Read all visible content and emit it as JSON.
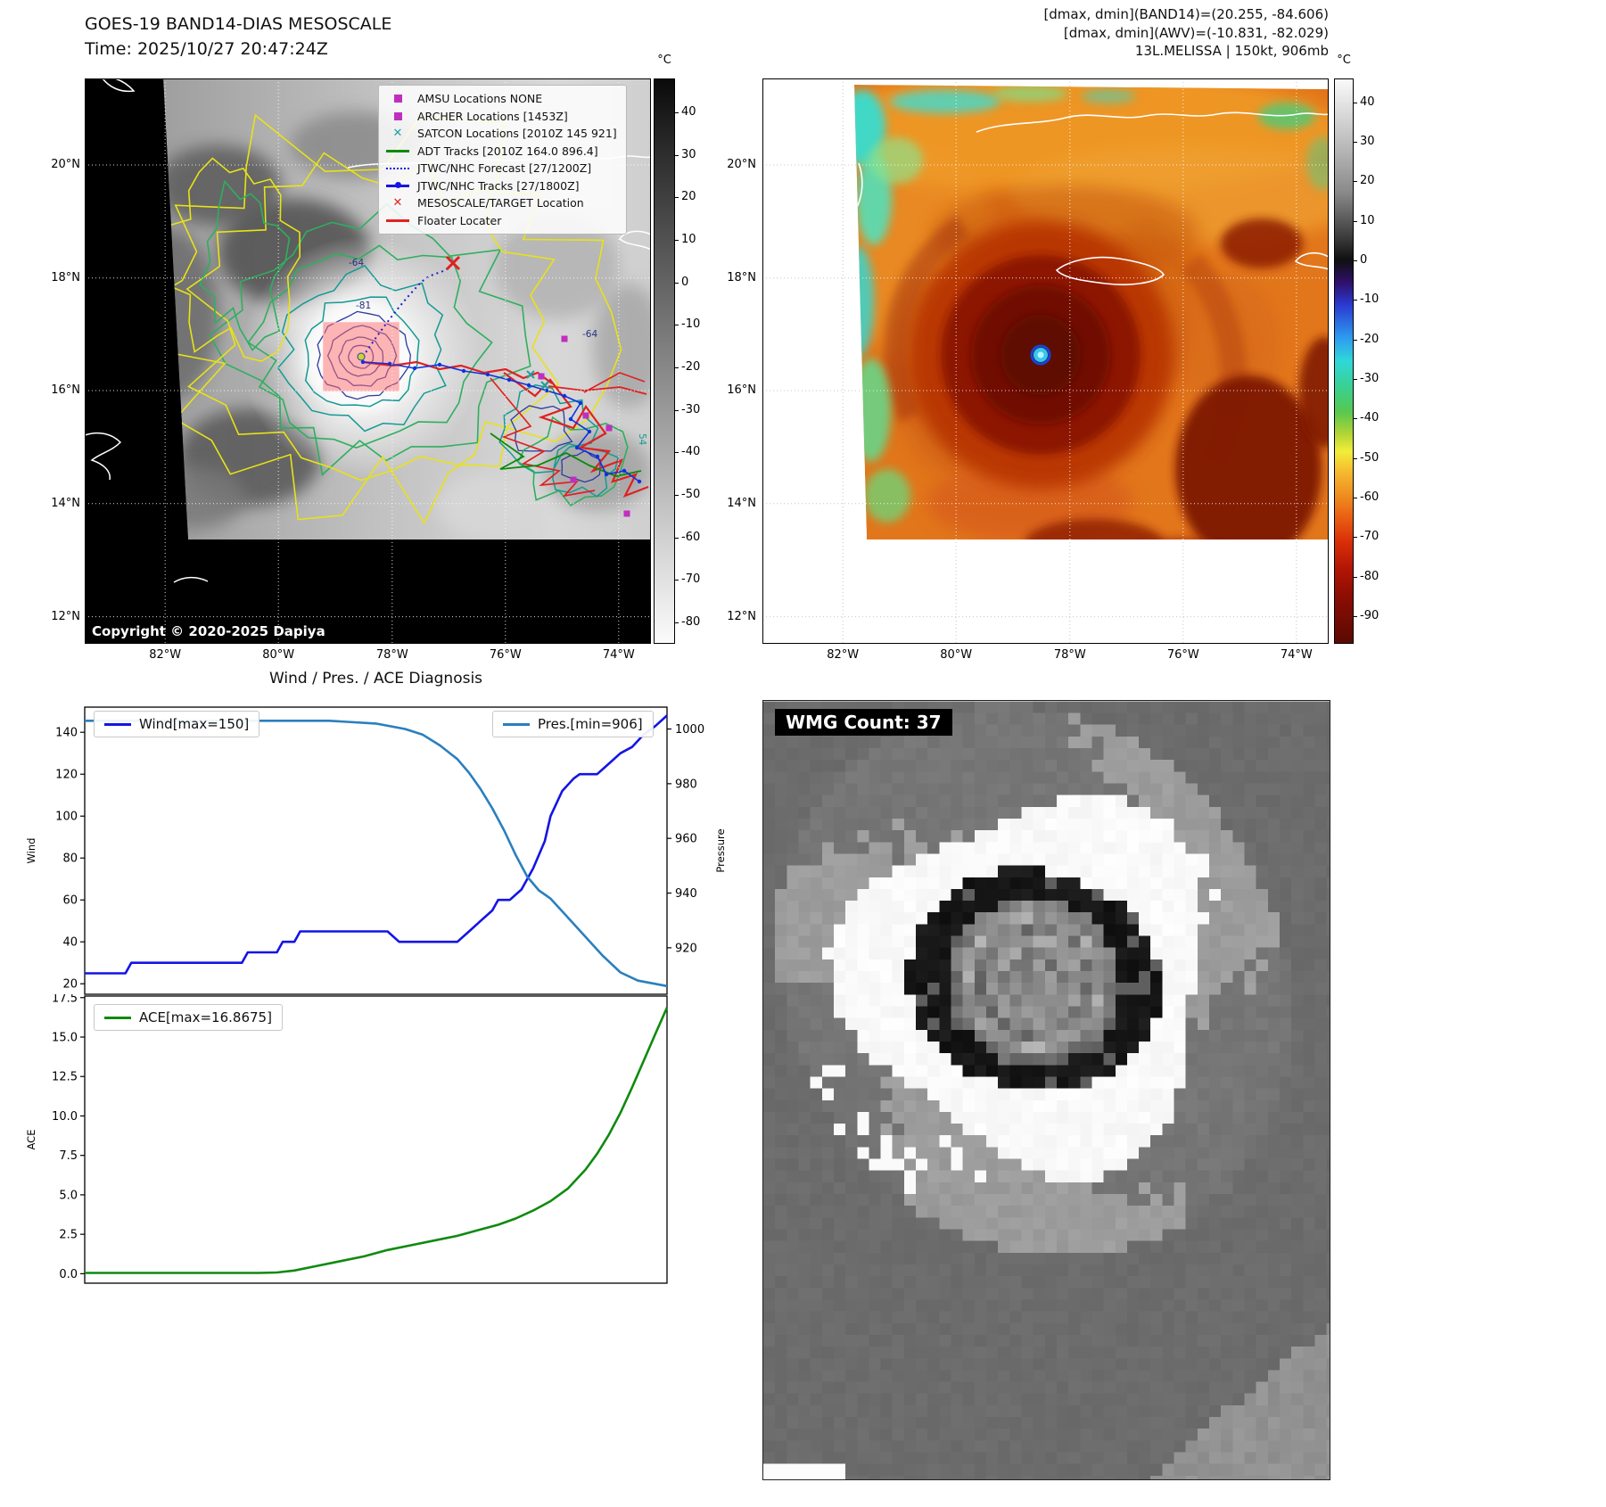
{
  "panel_tl": {
    "title": "GOES-19 BAND14-DIAS MESOSCALE",
    "subtitle": "Time: 2025/10/27 20:47:24Z",
    "copyright": "Copyright © 2020-2025 Dapiya",
    "colorbar_unit": "°C",
    "colorbar_ticks": [
      "40",
      "30",
      "20",
      "10",
      "0",
      "-10",
      "-20",
      "-30",
      "-40",
      "-50",
      "-60",
      "-70",
      "-80"
    ],
    "lat_ticks": [
      "20°N",
      "18°N",
      "16°N",
      "14°N",
      "12°N"
    ],
    "lon_ticks": [
      "82°W",
      "80°W",
      "78°W",
      "76°W",
      "74°W"
    ],
    "contour_labels": [
      "-64",
      "-81",
      "-64",
      "54"
    ],
    "legend_items": [
      {
        "label": "AMSU Locations NONE",
        "marker": "square",
        "color": "#bf2fbf"
      },
      {
        "label": "ARCHER Locations [1453Z]",
        "marker": "square",
        "color": "#bf2fbf"
      },
      {
        "label": "SATCON Locations [2010Z 145 921]",
        "marker": "x",
        "color": "#1ba39c"
      },
      {
        "label": "ADT Tracks [2010Z 164.0 896.4]",
        "marker": "line",
        "color": "#0c8a0c"
      },
      {
        "label": "JTWC/NHC Forecast [27/1200Z]",
        "marker": "dotted",
        "color": "#1515e8"
      },
      {
        "label": "JTWC/NHC Tracks [27/1800Z]",
        "marker": "line-dot",
        "color": "#1515e8"
      },
      {
        "label": "MESOSCALE/TARGET Location",
        "marker": "x",
        "color": "#e32222"
      },
      {
        "label": "Floater Locater",
        "marker": "line",
        "color": "#e32222"
      }
    ]
  },
  "panel_tr": {
    "title_lines": [
      "[dmax, dmin](BAND14)=(20.255, -84.606)",
      "[dmax, dmin](AWV)=(-10.831, -82.029)",
      "13L.MELISSA | 150kt, 906mb"
    ],
    "colorbar_unit": "°C",
    "colorbar_ticks": [
      "40",
      "30",
      "20",
      "10",
      "0",
      "-10",
      "-20",
      "-30",
      "-40",
      "-50",
      "-60",
      "-70",
      "-80",
      "-90"
    ],
    "lat_ticks": [
      "20°N",
      "18°N",
      "16°N",
      "14°N",
      "12°N"
    ],
    "lon_ticks": [
      "82°W",
      "80°W",
      "78°W",
      "76°W",
      "74°W"
    ]
  },
  "panel_bl": {
    "suptitle": "Wind / Pres. / ACE Diagnosis",
    "wind_legend": "Wind[max=150]",
    "pres_legend": "Pres.[min=906]",
    "ace_legend": "ACE[max=16.8675]"
  },
  "panel_br": {
    "wmg_label": "WMG Count: 37"
  },
  "chart_data": [
    {
      "type": "line",
      "panel": "wind-pressure",
      "xlim": [
        0,
        1
      ],
      "series": [
        {
          "key": "wind-line",
          "name": "Wind",
          "color": "#1414e6",
          "axis": "left",
          "ylabel": "Wind",
          "ylim": [
            15,
            152
          ],
          "yticks": [
            20,
            40,
            60,
            80,
            100,
            120,
            140
          ],
          "ytick_labels": [
            "20",
            "40",
            "60",
            "80",
            "100",
            "120",
            "140"
          ],
          "max": 150,
          "points": [
            [
              0,
              25
            ],
            [
              0.07,
              25
            ],
            [
              0.08,
              30
            ],
            [
              0.27,
              30
            ],
            [
              0.28,
              35
            ],
            [
              0.33,
              35
            ],
            [
              0.34,
              40
            ],
            [
              0.36,
              40
            ],
            [
              0.37,
              45
            ],
            [
              0.52,
              45
            ],
            [
              0.54,
              40
            ],
            [
              0.64,
              40
            ],
            [
              0.66,
              45
            ],
            [
              0.68,
              50
            ],
            [
              0.7,
              55
            ],
            [
              0.71,
              60
            ],
            [
              0.73,
              60
            ],
            [
              0.75,
              65
            ],
            [
              0.77,
              75
            ],
            [
              0.79,
              88
            ],
            [
              0.8,
              100
            ],
            [
              0.82,
              112
            ],
            [
              0.84,
              118
            ],
            [
              0.85,
              120
            ],
            [
              0.88,
              120
            ],
            [
              0.9,
              125
            ],
            [
              0.92,
              130
            ],
            [
              0.94,
              133
            ],
            [
              0.96,
              139
            ],
            [
              0.98,
              143
            ],
            [
              1,
              148
            ]
          ]
        },
        {
          "key": "pressure-line",
          "name": "Pres.",
          "color": "#2a7fbe",
          "axis": "right",
          "ylabel": "Pressure",
          "ylim": [
            903,
            1008
          ],
          "yticks": [
            920,
            940,
            960,
            980,
            1000
          ],
          "ytick_labels": [
            "920",
            "940",
            "960",
            "980",
            "1000"
          ],
          "min": 906,
          "points": [
            [
              0,
              1003
            ],
            [
              0.42,
              1003
            ],
            [
              0.5,
              1002
            ],
            [
              0.55,
              1000
            ],
            [
              0.58,
              998
            ],
            [
              0.61,
              994
            ],
            [
              0.64,
              989
            ],
            [
              0.66,
              984
            ],
            [
              0.68,
              978
            ],
            [
              0.7,
              971
            ],
            [
              0.72,
              963
            ],
            [
              0.74,
              954
            ],
            [
              0.76,
              946
            ],
            [
              0.78,
              941
            ],
            [
              0.8,
              938
            ],
            [
              0.83,
              931
            ],
            [
              0.86,
              924
            ],
            [
              0.89,
              917
            ],
            [
              0.92,
              911
            ],
            [
              0.95,
              908
            ],
            [
              1,
              906
            ]
          ]
        }
      ]
    },
    {
      "type": "line",
      "panel": "ace",
      "xlim": [
        0,
        1
      ],
      "series": [
        {
          "key": "ace-line",
          "name": "ACE",
          "color": "#0f8a0f",
          "axis": "left",
          "ylabel": "ACE",
          "ylim": [
            -0.6,
            17.6
          ],
          "yticks": [
            0,
            2.5,
            5,
            7.5,
            10,
            12.5,
            15,
            17.5
          ],
          "ytick_labels": [
            "0.0",
            "2.5",
            "5.0",
            "7.5",
            "10.0",
            "12.5",
            "15.0",
            "17.5"
          ],
          "max": 16.8675,
          "points": [
            [
              0,
              0.05
            ],
            [
              0.3,
              0.05
            ],
            [
              0.33,
              0.08
            ],
            [
              0.36,
              0.2
            ],
            [
              0.4,
              0.5
            ],
            [
              0.44,
              0.8
            ],
            [
              0.48,
              1.1
            ],
            [
              0.52,
              1.5
            ],
            [
              0.56,
              1.8
            ],
            [
              0.6,
              2.1
            ],
            [
              0.64,
              2.4
            ],
            [
              0.68,
              2.8
            ],
            [
              0.71,
              3.1
            ],
            [
              0.74,
              3.5
            ],
            [
              0.77,
              4
            ],
            [
              0.8,
              4.6
            ],
            [
              0.83,
              5.4
            ],
            [
              0.86,
              6.6
            ],
            [
              0.88,
              7.6
            ],
            [
              0.9,
              8.8
            ],
            [
              0.92,
              10.2
            ],
            [
              0.94,
              11.8
            ],
            [
              0.96,
              13.5
            ],
            [
              0.98,
              15.2
            ],
            [
              1,
              16.87
            ]
          ]
        }
      ]
    }
  ]
}
